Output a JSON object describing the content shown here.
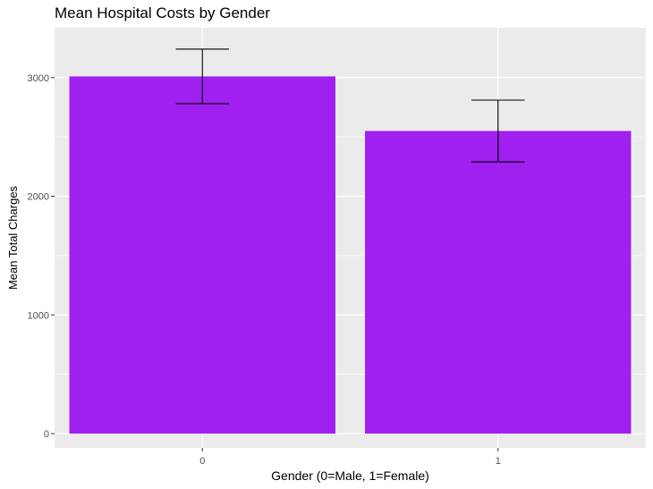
{
  "chart_data": {
    "type": "bar",
    "title": "Mean Hospital Costs by Gender",
    "xlabel": "Gender (0=Male, 1=Female)",
    "ylabel": "Mean Total Charges",
    "categories": [
      "0",
      "1"
    ],
    "values": [
      3010,
      2550
    ],
    "error_bars": [
      {
        "lower": 2780,
        "upper": 3240
      },
      {
        "lower": 2290,
        "upper": 2810
      }
    ],
    "ylim": [
      -120,
      3420
    ],
    "yticks": [
      0,
      1000,
      2000,
      3000
    ],
    "grid": true,
    "legend": "none",
    "colors": {
      "bar": "#A020F0",
      "panel": "#EBEBEB",
      "grid": "#FFFFFF",
      "errorbar": "#000000"
    }
  }
}
